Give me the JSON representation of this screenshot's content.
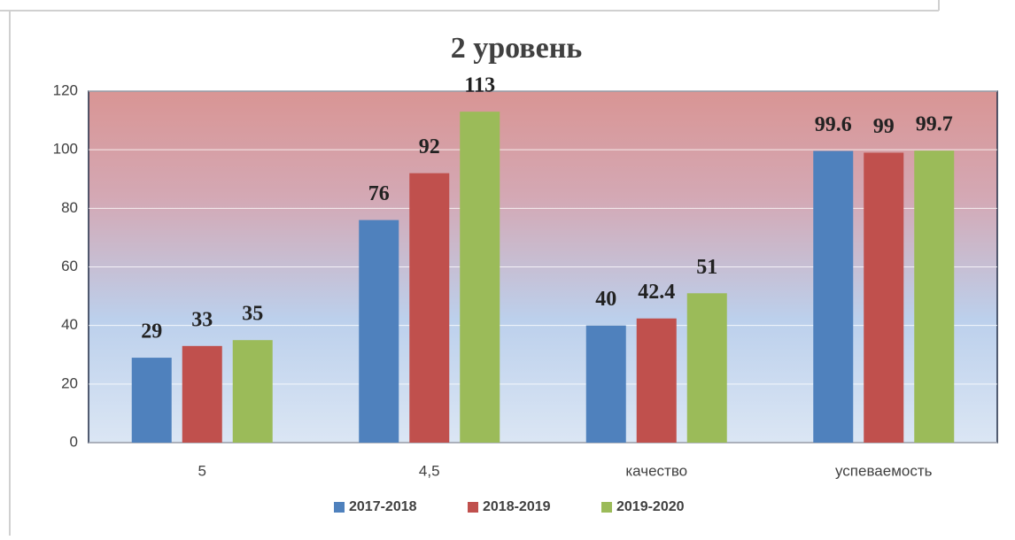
{
  "chart_data": {
    "type": "bar",
    "title": "2 уровень",
    "categories": [
      "5",
      "4,5",
      "качество",
      "успеваемость"
    ],
    "series": [
      {
        "name": "2017-2018",
        "color": "#4f81bd",
        "values": [
          29,
          76,
          40,
          99.6
        ]
      },
      {
        "name": "2018-2019",
        "color": "#c0504d",
        "values": [
          33,
          92,
          42.4,
          99
        ]
      },
      {
        "name": "2019-2020",
        "color": "#9bbb59",
        "values": [
          35,
          113,
          51,
          99.7
        ]
      }
    ],
    "ylim": [
      0,
      120
    ],
    "yticks": [
      0,
      20,
      40,
      60,
      80,
      100,
      120
    ],
    "grid": true,
    "legend": "bottom"
  }
}
